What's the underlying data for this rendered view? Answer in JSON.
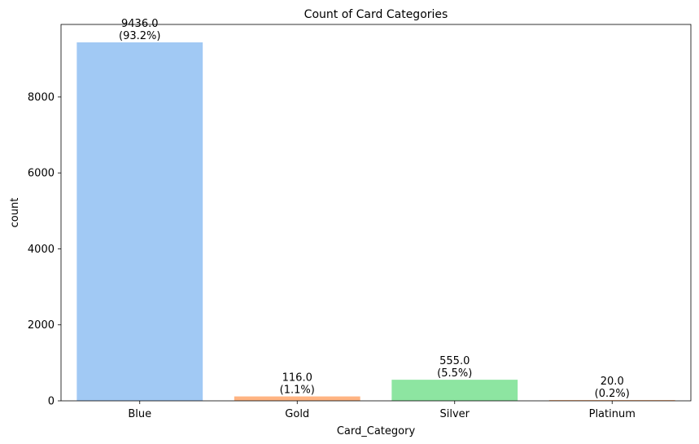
{
  "chart_data": {
    "type": "bar",
    "title": "Count of Card Categories",
    "xlabel": "Card_Category",
    "ylabel": "count",
    "categories": [
      "Blue",
      "Gold",
      "Silver",
      "Platinum"
    ],
    "values": [
      9436.0,
      116.0,
      555.0,
      20.0
    ],
    "data_labels": [
      {
        "value": "9436.0",
        "percent": "(93.2%)"
      },
      {
        "value": "116.0",
        "percent": "(1.1%)"
      },
      {
        "value": "555.0",
        "percent": "(5.5%)"
      },
      {
        "value": "20.0",
        "percent": "(0.2%)"
      }
    ],
    "colors": [
      "#a1c9f4",
      "#ffb482",
      "#8de5a1",
      "#ffb482"
    ],
    "yticks": [
      0,
      2000,
      4000,
      6000,
      8000
    ],
    "ylim": [
      0,
      9908
    ],
    "grid": false,
    "legend": "none"
  }
}
